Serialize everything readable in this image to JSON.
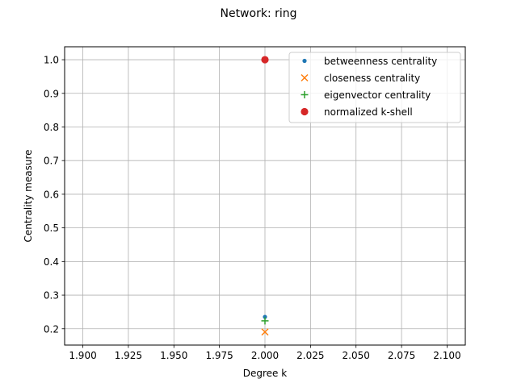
{
  "chart_data": {
    "type": "scatter",
    "title": "Network: ring",
    "xlabel": "Degree k",
    "ylabel": "Centrality measure",
    "xlim": [
      1.89,
      2.11
    ],
    "ylim": [
      0.1515,
      1.0385
    ],
    "xticks": [
      "1.900",
      "1.925",
      "1.950",
      "1.975",
      "2.000",
      "2.025",
      "2.050",
      "2.075",
      "2.100"
    ],
    "xtick_values": [
      1.9,
      1.925,
      1.95,
      1.975,
      2.0,
      2.025,
      2.05,
      2.075,
      2.1
    ],
    "yticks": [
      "0.2",
      "0.3",
      "0.4",
      "0.5",
      "0.6",
      "0.7",
      "0.8",
      "0.9",
      "1.0"
    ],
    "ytick_values": [
      0.2,
      0.3,
      0.4,
      0.5,
      0.6,
      0.7,
      0.8,
      0.9,
      1.0
    ],
    "grid": true,
    "legend_position": "top-right",
    "series": [
      {
        "name": "betweenness centrality",
        "marker": "dot",
        "color": "#1f77b4",
        "x": [
          2.0
        ],
        "y": [
          0.2353
        ]
      },
      {
        "name": "closeness centrality",
        "marker": "x",
        "color": "#ff7f0e",
        "x": [
          2.0
        ],
        "y": [
          0.1905
        ]
      },
      {
        "name": "eigenvector centrality",
        "marker": "plus",
        "color": "#2ca02c",
        "x": [
          2.0
        ],
        "y": [
          0.2236
        ]
      },
      {
        "name": "normalized k-shell",
        "marker": "circle",
        "color": "#d62728",
        "x": [
          2.0
        ],
        "y": [
          1.0
        ]
      }
    ]
  }
}
